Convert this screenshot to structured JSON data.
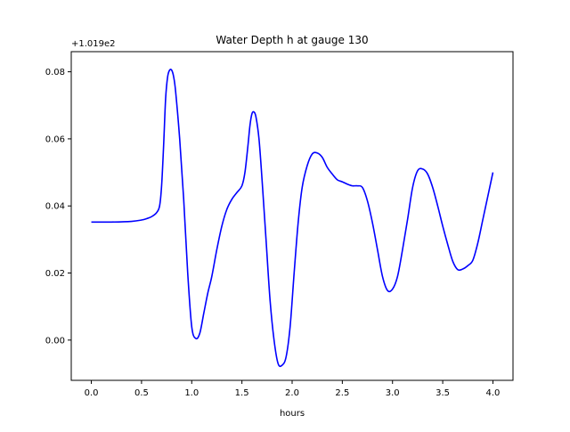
{
  "chart_data": {
    "type": "line",
    "title": "Water Depth h at gauge 130",
    "xlabel": "hours",
    "ylabel": "",
    "y_offset_text": "+1.019e2",
    "xlim": [
      -0.2,
      4.2
    ],
    "ylim": [
      -0.012,
      0.086
    ],
    "xticks": [
      0.0,
      0.5,
      1.0,
      1.5,
      2.0,
      2.5,
      3.0,
      3.5,
      4.0
    ],
    "xtick_labels": [
      "0.0",
      "0.5",
      "1.0",
      "1.5",
      "2.0",
      "2.5",
      "3.0",
      "3.5",
      "4.0"
    ],
    "yticks": [
      0.0,
      0.02,
      0.04,
      0.06,
      0.08
    ],
    "ytick_labels": [
      "0.00",
      "0.02",
      "0.04",
      "0.06",
      "0.08"
    ],
    "grid": false,
    "series": [
      {
        "color": "#0000ff",
        "x": [
          0.0,
          0.2,
          0.4,
          0.5,
          0.55,
          0.6,
          0.65,
          0.68,
          0.7,
          0.72,
          0.74,
          0.76,
          0.78,
          0.8,
          0.82,
          0.84,
          0.88,
          0.92,
          0.96,
          1.0,
          1.04,
          1.08,
          1.12,
          1.16,
          1.2,
          1.25,
          1.3,
          1.35,
          1.4,
          1.45,
          1.5,
          1.53,
          1.56,
          1.58,
          1.6,
          1.62,
          1.64,
          1.67,
          1.7,
          1.74,
          1.78,
          1.82,
          1.86,
          1.9,
          1.94,
          1.98,
          2.02,
          2.06,
          2.1,
          2.15,
          2.2,
          2.25,
          2.3,
          2.35,
          2.4,
          2.45,
          2.5,
          2.55,
          2.6,
          2.65,
          2.7,
          2.75,
          2.8,
          2.85,
          2.9,
          2.95,
          3.0,
          3.05,
          3.1,
          3.15,
          3.2,
          3.25,
          3.3,
          3.35,
          3.4,
          3.45,
          3.5,
          3.55,
          3.6,
          3.65,
          3.7,
          3.75,
          3.8,
          3.85,
          3.9,
          3.95,
          4.0
        ],
        "y": [
          0.0352,
          0.0352,
          0.0354,
          0.0358,
          0.0362,
          0.0368,
          0.038,
          0.04,
          0.046,
          0.058,
          0.072,
          0.0785,
          0.0805,
          0.0805,
          0.0785,
          0.074,
          0.06,
          0.042,
          0.02,
          0.004,
          0.0005,
          0.002,
          0.008,
          0.014,
          0.019,
          0.027,
          0.034,
          0.039,
          0.042,
          0.044,
          0.046,
          0.05,
          0.058,
          0.064,
          0.0675,
          0.068,
          0.0665,
          0.06,
          0.048,
          0.03,
          0.012,
          0.0,
          -0.007,
          -0.0075,
          -0.005,
          0.004,
          0.02,
          0.035,
          0.0455,
          0.052,
          0.0555,
          0.0558,
          0.0545,
          0.0515,
          0.0495,
          0.0478,
          0.0472,
          0.0465,
          0.046,
          0.046,
          0.0455,
          0.0415,
          0.035,
          0.027,
          0.019,
          0.0148,
          0.0152,
          0.019,
          0.027,
          0.036,
          0.0455,
          0.0505,
          0.051,
          0.0495,
          0.0455,
          0.04,
          0.034,
          0.0285,
          0.0235,
          0.021,
          0.0212,
          0.0222,
          0.0238,
          0.029,
          0.036,
          0.043,
          0.05
        ]
      }
    ]
  }
}
